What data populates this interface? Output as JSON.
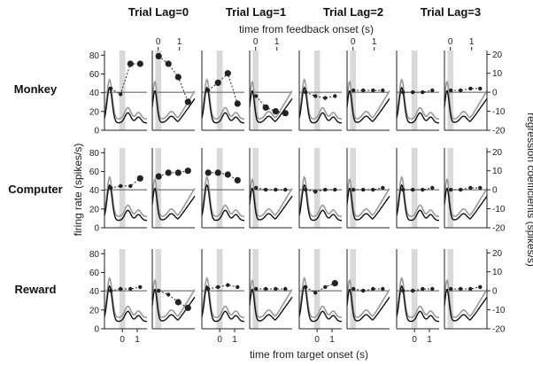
{
  "chart_data": {
    "type": "line",
    "column_titles": [
      "Trial Lag=0",
      "Trial Lag=1",
      "Trial Lag=2",
      "Trial Lag=3"
    ],
    "row_labels": [
      "Monkey",
      "Computer",
      "Reward"
    ],
    "xlabel_bottom": "time from target onset (s)",
    "xlabel_top": "time from feedback onset (s)",
    "ylabel_left": "firing rate (spikes/s)",
    "ylabel_right": "regression coefficients (spikes/s)",
    "left_axis": {
      "ylim": [
        0,
        85
      ],
      "ticks": [
        0,
        20,
        40,
        60,
        80
      ]
    },
    "right_axis": {
      "ylim": [
        -20,
        22
      ],
      "ticks": [
        -20,
        -10,
        0,
        10,
        20
      ]
    },
    "x_target_ticks": [
      "0",
      "1"
    ],
    "x_feedback_ticks": [
      "0",
      "1"
    ],
    "colors": {
      "trace_dark": "#111111",
      "trace_gray": "#9a9a9a",
      "shade": "#d9d9d9",
      "axis": "#222222",
      "points": "#222222"
    },
    "regression_points": {
      "Monkey": [
        {
          "target": [
            2,
            -1,
            15,
            15
          ],
          "feedback": [
            19,
            15,
            8,
            -5
          ]
        },
        {
          "target": [
            1,
            5,
            10,
            -6
          ],
          "feedback": [
            -2,
            -8,
            -10,
            -11
          ]
        },
        {
          "target": [
            0,
            -2,
            -3,
            -2
          ],
          "feedback": [
            1,
            1,
            1,
            1
          ]
        },
        {
          "target": [
            0,
            0,
            0,
            1
          ],
          "feedback": [
            1,
            1,
            2,
            2
          ]
        }
      ],
      "Computer": [
        {
          "target": [
            1,
            2,
            2,
            6
          ],
          "feedback": [
            7,
            9,
            9,
            10
          ]
        },
        {
          "target": [
            9,
            9,
            8,
            5
          ],
          "feedback": [
            1,
            0,
            0,
            0
          ]
        },
        {
          "target": [
            0,
            -1,
            0,
            0
          ],
          "feedback": [
            0,
            0,
            0,
            1
          ]
        },
        {
          "target": [
            0,
            0,
            0,
            1
          ],
          "feedback": [
            0,
            0,
            1,
            1
          ]
        }
      ],
      "Reward": [
        {
          "target": [
            0,
            1,
            1,
            2
          ],
          "feedback": [
            0,
            -2,
            -6,
            -9
          ]
        },
        {
          "target": [
            1,
            2,
            3,
            2
          ],
          "feedback": [
            1,
            1,
            1,
            1
          ]
        },
        {
          "target": [
            2,
            -1,
            2,
            4
          ],
          "feedback": [
            1,
            0,
            1,
            1
          ]
        },
        {
          "target": [
            0,
            0,
            1,
            1
          ],
          "feedback": [
            1,
            1,
            1,
            2
          ]
        }
      ]
    },
    "firing_rate_shape_note": "Each mini-panel shows two firing-rate traces (dark and gray) with an initial transient near 50-60 spikes/s, decaying to ~15-25 spikes/s with oscillations; feedback panels rise toward the end."
  }
}
